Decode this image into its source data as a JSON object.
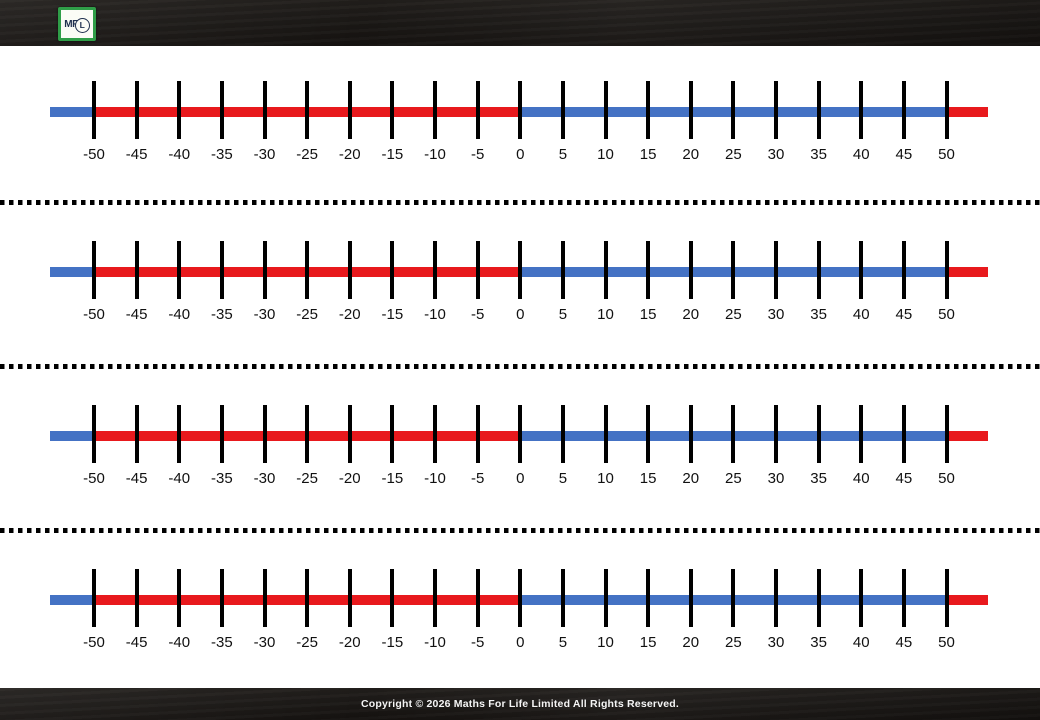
{
  "header": {
    "logo": {
      "text_mf": "MF",
      "text_l": "L"
    }
  },
  "sheet": {
    "num_rows": 4,
    "tick_labels": [
      "-50",
      "-45",
      "-40",
      "-35",
      "-30",
      "-25",
      "-20",
      "-15",
      "-10",
      "-5",
      "0",
      "5",
      "10",
      "15",
      "20",
      "25",
      "30",
      "35",
      "40",
      "45",
      "50"
    ],
    "colors": {
      "negative_segment": "#e8191d",
      "positive_segment": "#4472c4",
      "tick": "#000000"
    },
    "segments": [
      {
        "name": "left-extension",
        "color_key": "positive_segment"
      },
      {
        "name": "negative-half",
        "color_key": "negative_segment"
      },
      {
        "name": "positive-half",
        "color_key": "positive_segment"
      },
      {
        "name": "right-extension",
        "color_key": "negative_segment"
      }
    ]
  },
  "footer": {
    "copyright": "Copyright © 2026 Maths For Life Limited All Rights Reserved."
  }
}
